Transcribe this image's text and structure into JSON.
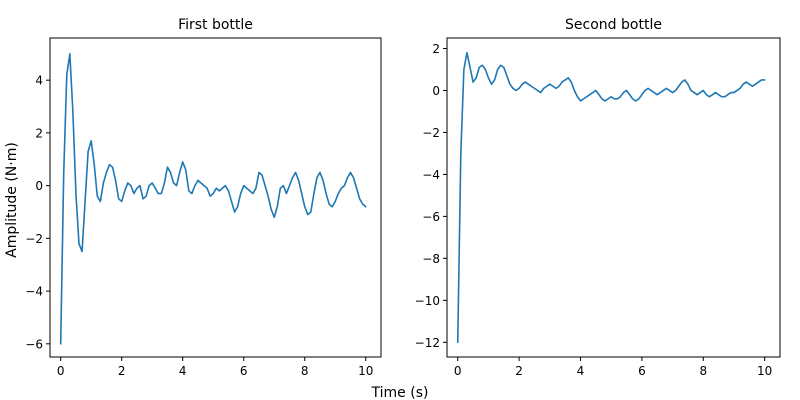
{
  "figure": {
    "xlabel": "Time (s)",
    "ylabel": "Amplitude (N·m)"
  },
  "colors": {
    "line": "#1f77b4"
  },
  "chart_data": [
    {
      "type": "line",
      "title": "First bottle",
      "xlim": [
        -0.35,
        10.5
      ],
      "ylim": [
        -6.5,
        5.6
      ],
      "xticks": [
        0,
        2,
        4,
        6,
        8,
        10
      ],
      "yticks": [
        -6,
        -4,
        -2,
        0,
        2,
        4
      ],
      "tick_labels_x": [
        "0",
        "2",
        "4",
        "6",
        "8",
        "10"
      ],
      "tick_labels_y": [
        "−6",
        "−4",
        "−2",
        "0",
        "2",
        "4"
      ],
      "grid": false,
      "series": [
        {
          "x": [
            0,
            0.1,
            0.2,
            0.3,
            0.4,
            0.5,
            0.6,
            0.7,
            0.8,
            0.9,
            1.0,
            1.1,
            1.2,
            1.3,
            1.4,
            1.5,
            1.6,
            1.7,
            1.8,
            1.9,
            2.0,
            2.1,
            2.2,
            2.3,
            2.4,
            2.5,
            2.6,
            2.7,
            2.8,
            2.9,
            3.0,
            3.1,
            3.2,
            3.3,
            3.4,
            3.5,
            3.6,
            3.7,
            3.8,
            3.9,
            4.0,
            4.1,
            4.2,
            4.3,
            4.4,
            4.5,
            4.6,
            4.7,
            4.8,
            4.9,
            5.0,
            5.1,
            5.2,
            5.3,
            5.4,
            5.5,
            5.6,
            5.7,
            5.8,
            5.9,
            6.0,
            6.1,
            6.2,
            6.3,
            6.4,
            6.5,
            6.6,
            6.7,
            6.8,
            6.9,
            7.0,
            7.1,
            7.2,
            7.3,
            7.4,
            7.5,
            7.6,
            7.7,
            7.8,
            7.9,
            8.0,
            8.1,
            8.2,
            8.3,
            8.4,
            8.5,
            8.6,
            8.7,
            8.8,
            8.9,
            9.0,
            9.1,
            9.2,
            9.3,
            9.4,
            9.5,
            9.6,
            9.7,
            9.8,
            9.9,
            10.0
          ],
          "y": [
            -6.0,
            0.5,
            4.2,
            5.0,
            2.8,
            -0.3,
            -2.2,
            -2.5,
            -0.6,
            1.3,
            1.7,
            0.8,
            -0.4,
            -0.6,
            0.1,
            0.5,
            0.8,
            0.7,
            0.2,
            -0.5,
            -0.6,
            -0.2,
            0.1,
            0.0,
            -0.3,
            -0.1,
            0.0,
            -0.5,
            -0.4,
            0.0,
            0.1,
            -0.1,
            -0.3,
            -0.3,
            0.1,
            0.7,
            0.5,
            0.1,
            0.0,
            0.5,
            0.9,
            0.6,
            -0.2,
            -0.3,
            0.0,
            0.2,
            0.1,
            0.0,
            -0.1,
            -0.4,
            -0.3,
            -0.1,
            -0.2,
            -0.1,
            0.0,
            -0.2,
            -0.6,
            -1.0,
            -0.8,
            -0.3,
            0.0,
            -0.1,
            -0.2,
            -0.3,
            -0.1,
            0.5,
            0.4,
            0.0,
            -0.4,
            -0.9,
            -1.2,
            -0.8,
            -0.1,
            0.0,
            -0.3,
            0.0,
            0.3,
            0.5,
            0.2,
            -0.3,
            -0.8,
            -1.1,
            -1.0,
            -0.3,
            0.3,
            0.5,
            0.2,
            -0.3,
            -0.7,
            -0.8,
            -0.6,
            -0.3,
            -0.1,
            0.0,
            0.3,
            0.5,
            0.3,
            -0.1,
            -0.5,
            -0.7,
            -0.8
          ]
        }
      ]
    },
    {
      "type": "line",
      "title": "Second bottle",
      "xlim": [
        -0.35,
        10.5
      ],
      "ylim": [
        -12.7,
        2.5
      ],
      "xticks": [
        0,
        2,
        4,
        6,
        8,
        10
      ],
      "yticks": [
        -12,
        -10,
        -8,
        -6,
        -4,
        -2,
        0,
        2
      ],
      "tick_labels_x": [
        "0",
        "2",
        "4",
        "6",
        "8",
        "10"
      ],
      "tick_labels_y": [
        "−12",
        "−10",
        "−8",
        "−6",
        "−4",
        "−2",
        "0",
        "2"
      ],
      "grid": false,
      "series": [
        {
          "x": [
            0,
            0.1,
            0.2,
            0.3,
            0.4,
            0.5,
            0.6,
            0.7,
            0.8,
            0.9,
            1.0,
            1.1,
            1.2,
            1.3,
            1.4,
            1.5,
            1.6,
            1.7,
            1.8,
            1.9,
            2.0,
            2.1,
            2.2,
            2.3,
            2.4,
            2.5,
            2.6,
            2.7,
            2.8,
            2.9,
            3.0,
            3.1,
            3.2,
            3.3,
            3.4,
            3.5,
            3.6,
            3.7,
            3.8,
            3.9,
            4.0,
            4.1,
            4.2,
            4.3,
            4.4,
            4.5,
            4.6,
            4.7,
            4.8,
            4.9,
            5.0,
            5.1,
            5.2,
            5.3,
            5.4,
            5.5,
            5.6,
            5.7,
            5.8,
            5.9,
            6.0,
            6.1,
            6.2,
            6.3,
            6.4,
            6.5,
            6.6,
            6.7,
            6.8,
            6.9,
            7.0,
            7.1,
            7.2,
            7.3,
            7.4,
            7.5,
            7.6,
            7.7,
            7.8,
            7.9,
            8.0,
            8.1,
            8.2,
            8.3,
            8.4,
            8.5,
            8.6,
            8.7,
            8.8,
            8.9,
            9.0,
            9.1,
            9.2,
            9.3,
            9.4,
            9.5,
            9.6,
            9.7,
            9.8,
            9.9,
            10.0
          ],
          "y": [
            -12.0,
            -3.0,
            1.0,
            1.8,
            1.1,
            0.4,
            0.6,
            1.1,
            1.2,
            1.0,
            0.6,
            0.3,
            0.5,
            1.0,
            1.2,
            1.1,
            0.7,
            0.3,
            0.1,
            0.0,
            0.1,
            0.3,
            0.4,
            0.3,
            0.2,
            0.1,
            0.0,
            -0.1,
            0.1,
            0.2,
            0.3,
            0.2,
            0.1,
            0.2,
            0.4,
            0.5,
            0.6,
            0.4,
            0.0,
            -0.3,
            -0.5,
            -0.4,
            -0.3,
            -0.2,
            -0.1,
            0.0,
            -0.2,
            -0.4,
            -0.5,
            -0.4,
            -0.3,
            -0.4,
            -0.4,
            -0.3,
            -0.1,
            0.0,
            -0.2,
            -0.4,
            -0.5,
            -0.4,
            -0.2,
            0.0,
            0.1,
            0.0,
            -0.1,
            -0.2,
            -0.1,
            0.0,
            0.1,
            0.0,
            -0.1,
            0.0,
            0.2,
            0.4,
            0.5,
            0.3,
            0.0,
            -0.1,
            -0.2,
            -0.1,
            0.0,
            -0.2,
            -0.3,
            -0.2,
            -0.1,
            -0.2,
            -0.3,
            -0.3,
            -0.2,
            -0.1,
            -0.1,
            0.0,
            0.1,
            0.3,
            0.4,
            0.3,
            0.2,
            0.3,
            0.4,
            0.5,
            0.5
          ]
        }
      ]
    }
  ]
}
